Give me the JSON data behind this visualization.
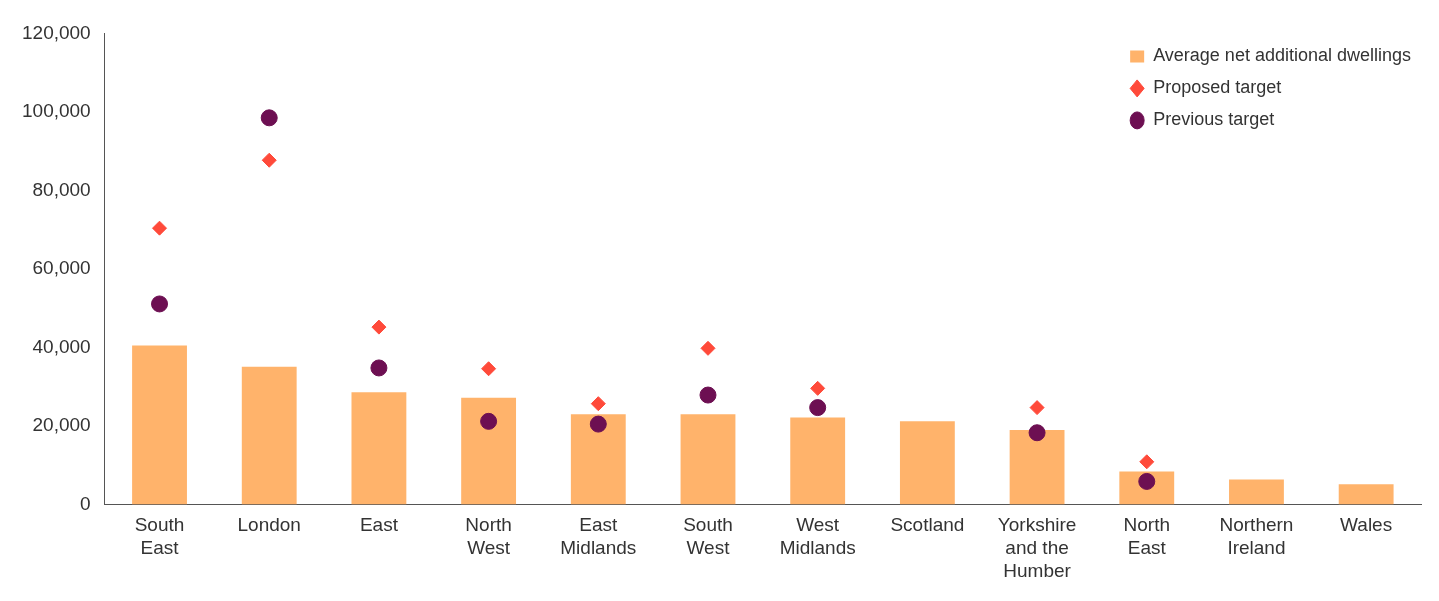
{
  "chart_data": {
    "type": "bar",
    "categories": [
      "South East",
      "London",
      "East",
      "North West",
      "East Midlands",
      "South West",
      "West Midlands",
      "Scotland",
      "Yorkshire and the Humber",
      "North East",
      "Northern Ireland",
      "Wales"
    ],
    "series": [
      {
        "name": "Average net additional dwellings",
        "color": "#ffb36b",
        "values": [
          40500,
          35100,
          28600,
          27200,
          23000,
          23000,
          22200,
          21200,
          19000,
          8400,
          6400,
          5200
        ]
      },
      {
        "name": "Proposed target",
        "type": "scatter",
        "marker": "diamond",
        "color": "#ff4a3a",
        "values": [
          70400,
          87700,
          45200,
          34600,
          25700,
          39800,
          29600,
          null,
          24700,
          10900,
          null,
          null
        ]
      },
      {
        "name": "Previous target",
        "type": "scatter",
        "marker": "circle",
        "color": "#6d0f52",
        "values": [
          51100,
          98500,
          34800,
          21200,
          20500,
          27900,
          24700,
          null,
          18300,
          5900,
          null,
          null
        ]
      }
    ],
    "ylim": [
      0,
      120000
    ],
    "yticks": [
      {
        "value": 0,
        "label": "0"
      },
      {
        "value": 20000,
        "label": "20,000"
      },
      {
        "value": 40000,
        "label": "40,000"
      },
      {
        "value": 60000,
        "label": "60,000"
      },
      {
        "value": 80000,
        "label": "80,000"
      },
      {
        "value": 100000,
        "label": "100,000"
      },
      {
        "value": 120000,
        "label": "120,000"
      }
    ],
    "grid": false,
    "legend": "top right"
  }
}
